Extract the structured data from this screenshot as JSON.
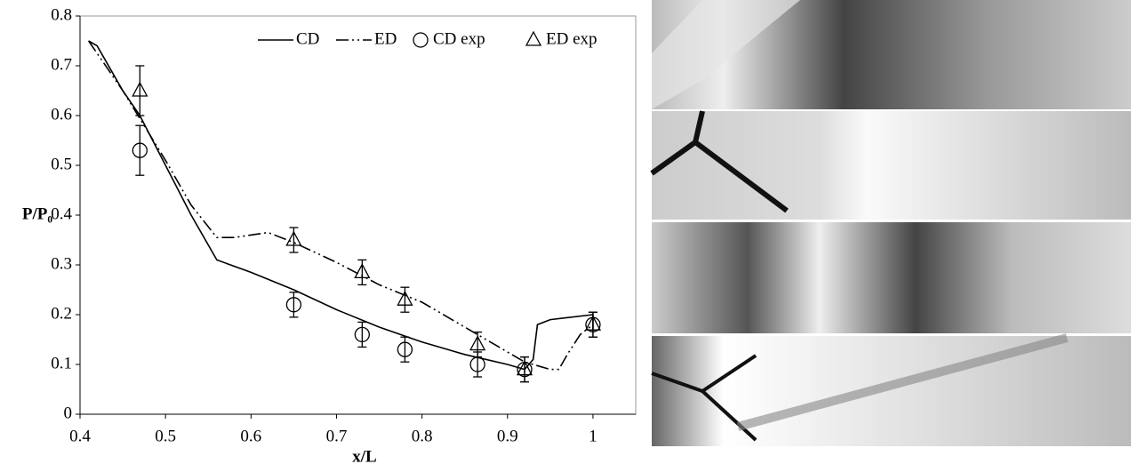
{
  "chart_data": {
    "type": "line",
    "xlabel": "x/L",
    "ylabel": "P/P₀",
    "xlim": [
      0.4,
      1.05
    ],
    "ylim": [
      0,
      0.8
    ],
    "xticks": [
      0.4,
      0.5,
      0.6,
      0.7,
      0.8,
      0.9,
      1
    ],
    "yticks": [
      0,
      0.1,
      0.2,
      0.3,
      0.4,
      0.5,
      0.6,
      0.7,
      0.8
    ],
    "legend": "top-right",
    "series": [
      {
        "name": "CD",
        "color": "#000000",
        "dash": "solid",
        "x": [
          0.41,
          0.42,
          0.45,
          0.47,
          0.5,
          0.53,
          0.56,
          0.6,
          0.65,
          0.7,
          0.75,
          0.8,
          0.85,
          0.9,
          0.92,
          0.93,
          0.935,
          0.95,
          1.0,
          1.0
        ],
        "values": [
          0.75,
          0.74,
          0.65,
          0.6,
          0.5,
          0.4,
          0.31,
          0.285,
          0.25,
          0.21,
          0.175,
          0.145,
          0.12,
          0.1,
          0.09,
          0.11,
          0.18,
          0.19,
          0.2,
          0.17
        ]
      },
      {
        "name": "ED",
        "color": "#000000",
        "dash": "dash-dot-dot",
        "x": [
          0.41,
          0.45,
          0.5,
          0.53,
          0.56,
          0.58,
          0.62,
          0.65,
          0.7,
          0.75,
          0.8,
          0.85,
          0.9,
          0.92,
          0.95,
          0.96,
          0.97,
          0.985,
          1.0
        ],
        "values": [
          0.75,
          0.65,
          0.51,
          0.42,
          0.355,
          0.355,
          0.365,
          0.345,
          0.305,
          0.26,
          0.225,
          0.175,
          0.125,
          0.105,
          0.09,
          0.09,
          0.12,
          0.16,
          0.18
        ]
      },
      {
        "name": "CD exp",
        "color": "#000000",
        "marker": "circle",
        "x": [
          0.47,
          0.65,
          0.73,
          0.78,
          0.865,
          0.92,
          1.0
        ],
        "values": [
          0.53,
          0.22,
          0.16,
          0.13,
          0.1,
          0.09,
          0.18
        ],
        "errors": [
          0.05,
          0.025,
          0.025,
          0.025,
          0.025,
          0.025,
          0.025
        ]
      },
      {
        "name": "ED exp",
        "color": "#000000",
        "marker": "triangle",
        "x": [
          0.47,
          0.65,
          0.73,
          0.78,
          0.865,
          0.92,
          1.0
        ],
        "values": [
          0.65,
          0.35,
          0.285,
          0.23,
          0.14,
          0.09,
          0.18
        ],
        "errors": [
          0.05,
          0.025,
          0.025,
          0.025,
          0.025,
          0.025,
          0.025
        ]
      }
    ]
  }
}
